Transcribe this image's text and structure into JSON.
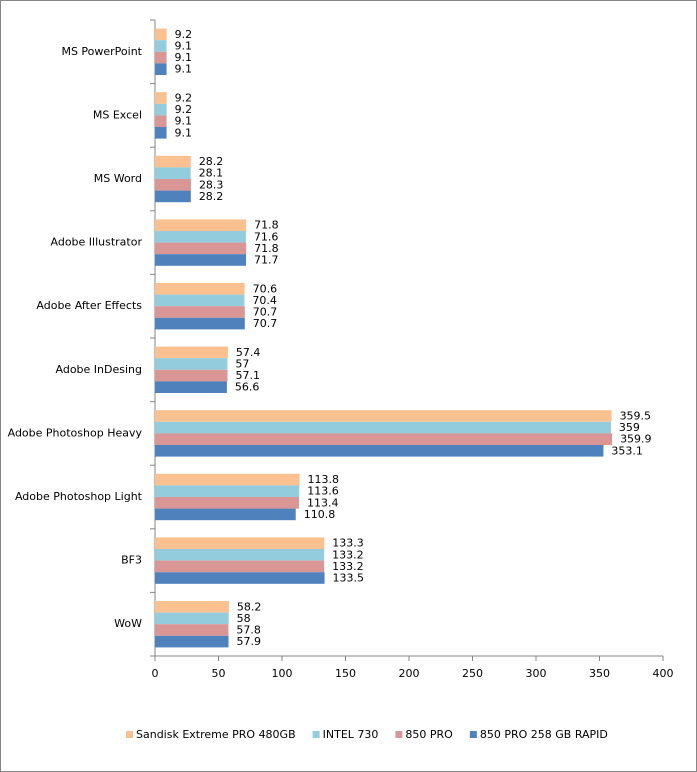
{
  "chart_data": {
    "type": "bar",
    "orientation": "horizontal",
    "categories": [
      "MS PowerPoint",
      "MS Excel",
      "MS Word",
      "Adobe Illustrator",
      "Adobe After Effects",
      "Adobe InDesing",
      "Adobe Photoshop Heavy",
      "Adobe Photoshop Light",
      "BF3",
      "WoW"
    ],
    "series": [
      {
        "name": "Sandisk Extreme PRO 480GB",
        "color": "#fac090",
        "values": [
          9.2,
          9.2,
          28.2,
          71.8,
          70.6,
          57.4,
          359.5,
          113.8,
          133.3,
          58.2
        ]
      },
      {
        "name": "INTEL 730",
        "color": "#93cddd",
        "values": [
          9.1,
          9.2,
          28.1,
          71.6,
          70.4,
          57,
          359,
          113.6,
          133.2,
          58
        ]
      },
      {
        "name": "850 PRO",
        "color": "#d99694",
        "values": [
          9.1,
          9.1,
          28.3,
          71.8,
          70.7,
          57.1,
          359.9,
          113.4,
          133.2,
          57.8
        ]
      },
      {
        "name": "850 PRO 258 GB RAPID",
        "color": "#4f81bd",
        "values": [
          9.1,
          9.1,
          28.2,
          71.7,
          70.7,
          56.6,
          353.1,
          110.8,
          133.5,
          57.9
        ]
      }
    ],
    "xlim": [
      0,
      400
    ],
    "xticks": [
      0,
      50,
      100,
      150,
      200,
      250,
      300,
      350,
      400
    ]
  }
}
